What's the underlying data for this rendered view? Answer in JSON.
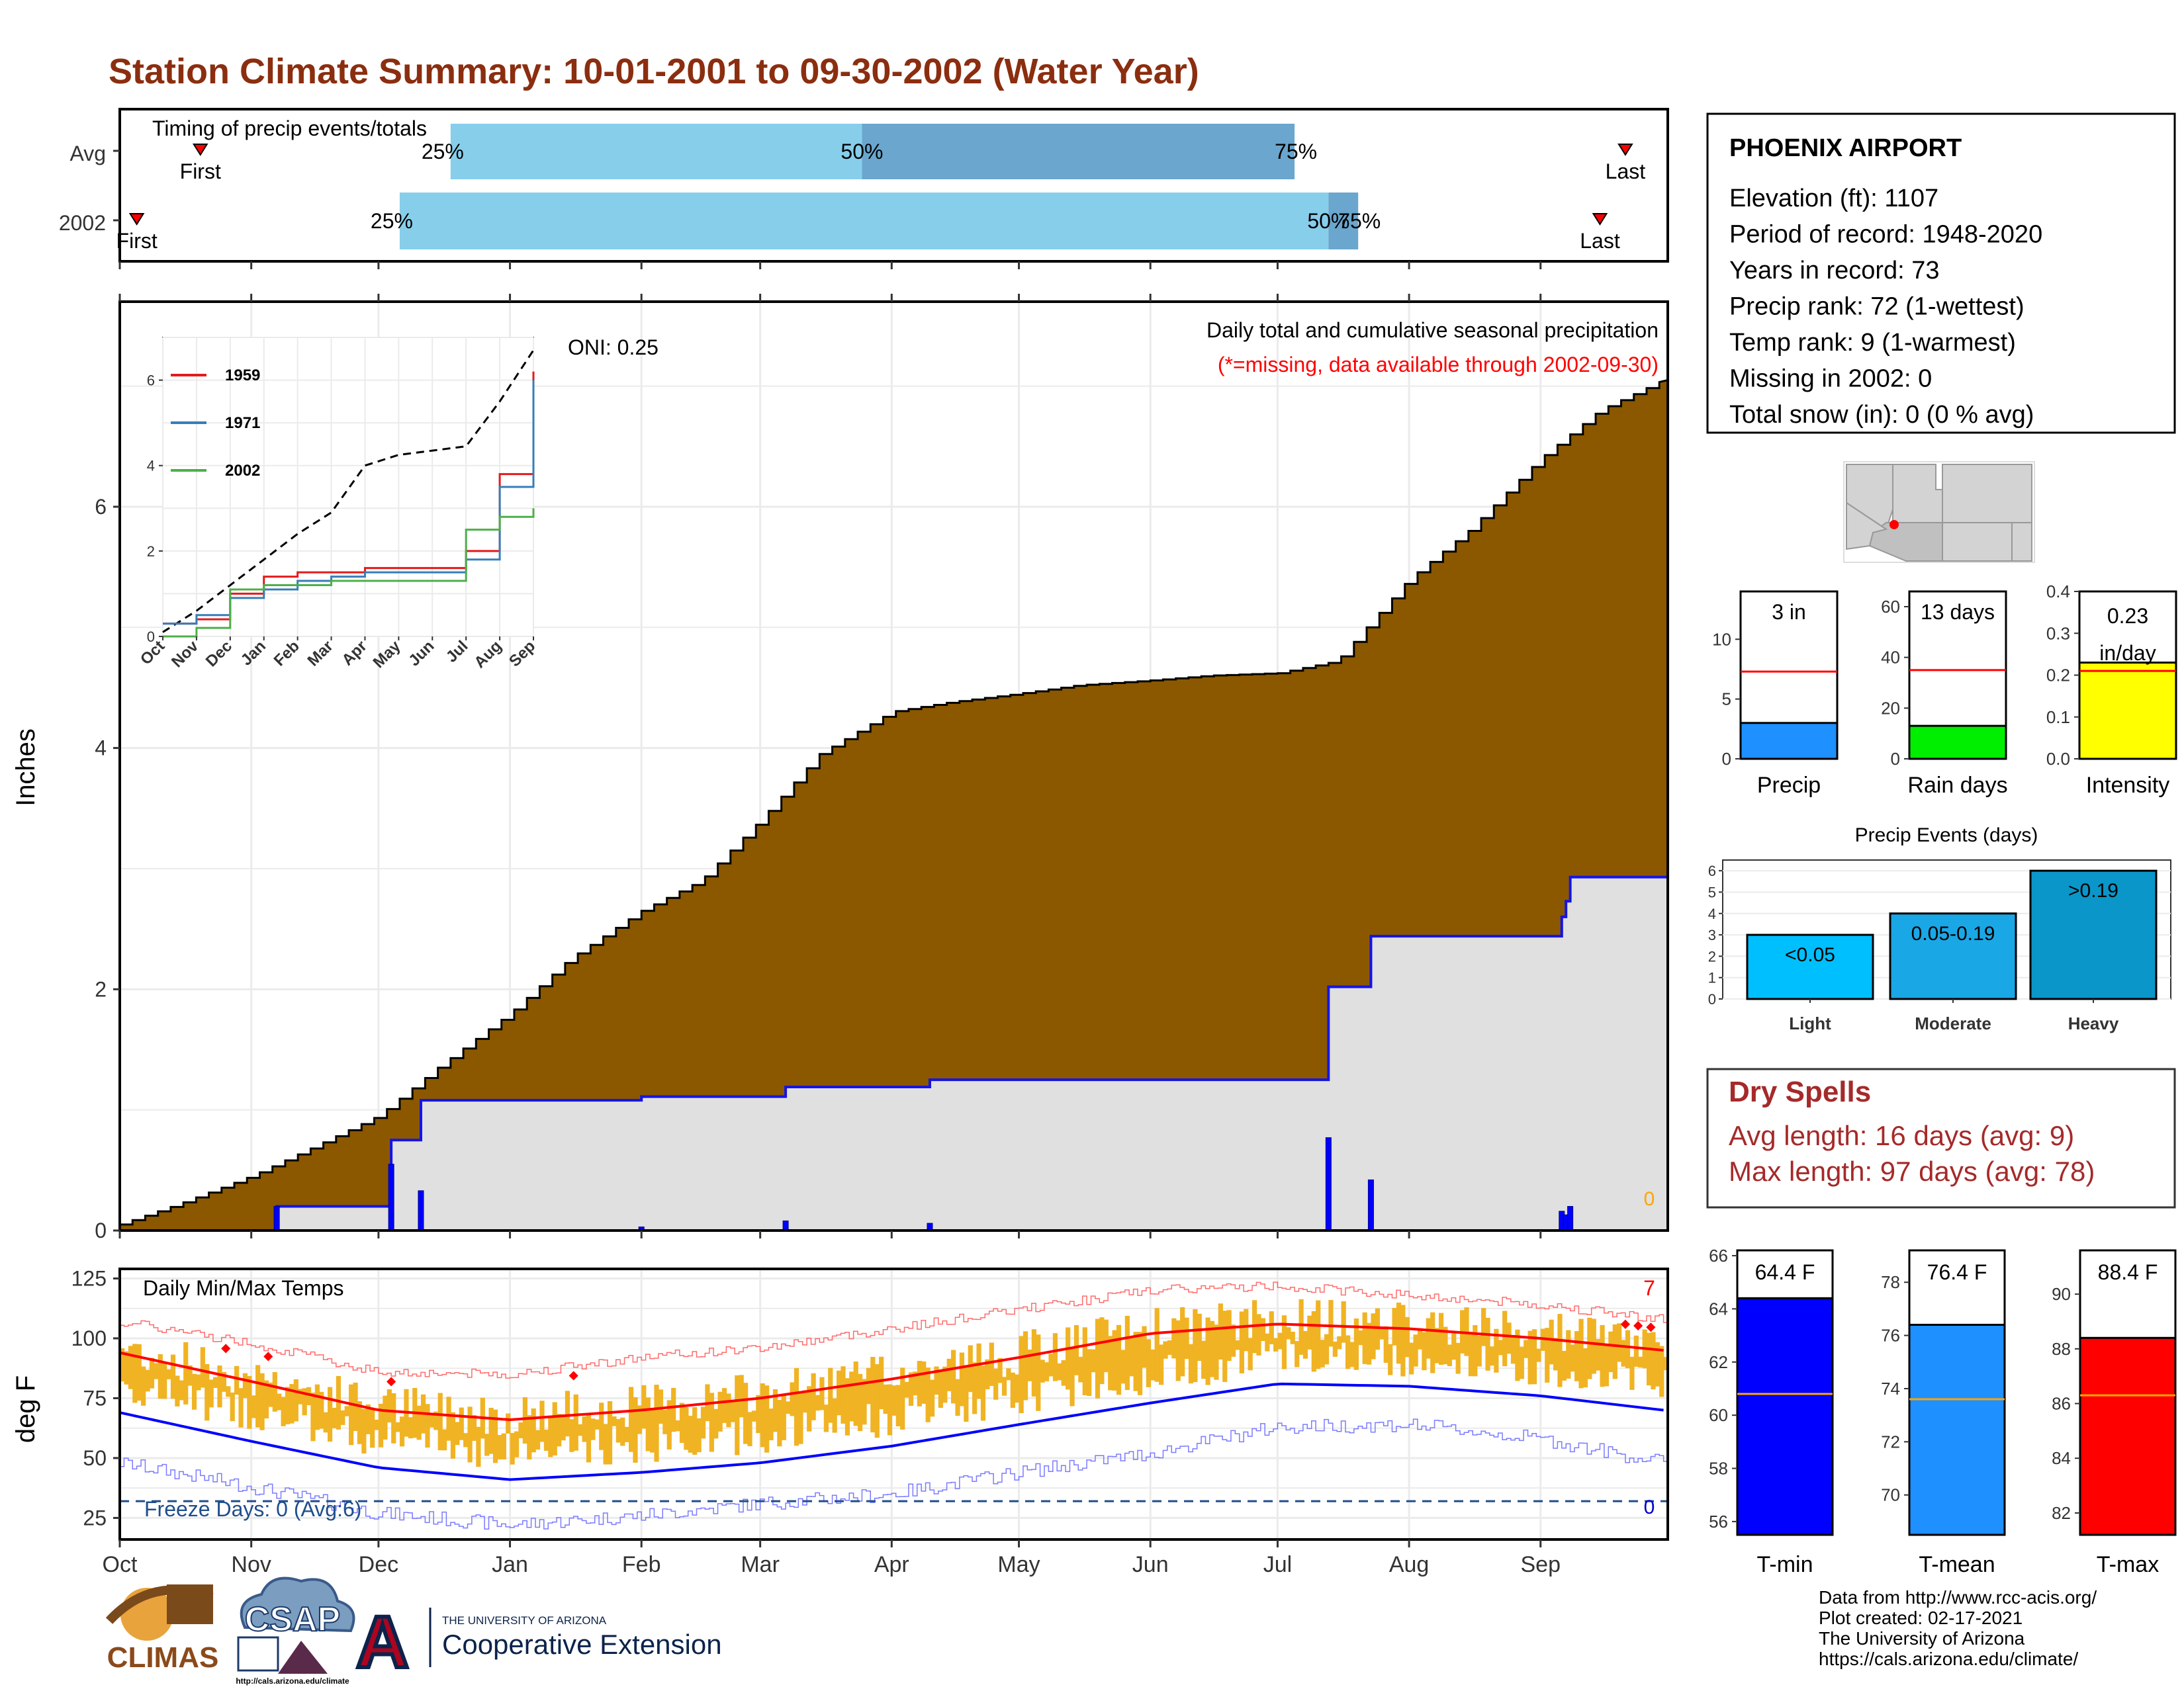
{
  "title": "Station Climate Summary: 10-01-2001 to 09-30-2002 (Water Year)",
  "colors": {
    "title": "#8b2e0f",
    "avg_fill": "#8b5800",
    "cur_fill": "#e0e0e0",
    "cur_line": "#1414e6",
    "light_blue": "#87ceeb",
    "mid_blue": "#6aa6cd",
    "temp_bar": "#f0b323",
    "dry_red": "#a52a2a",
    "record_red": "#ff0000",
    "record_blue": "#0000ff",
    "normal_line": "#ff0000",
    "yellow": "#ffff00",
    "green": "#00ee00",
    "precip_blue": "#1e90ff",
    "event_light": "#00bfff",
    "event_mod": "#1aa7e6",
    "event_heavy": "#0a96c8",
    "freeze": "#1f4e8c",
    "orange_line": "#ffa500"
  },
  "months": [
    "Oct",
    "Nov",
    "Dec",
    "Jan",
    "Feb",
    "Mar",
    "Apr",
    "May",
    "Jun",
    "Jul",
    "Aug",
    "Sep"
  ],
  "timing": {
    "title": "Timing of precip events/totals",
    "rows": [
      "Avg",
      "2002"
    ],
    "first_label": "First",
    "last_label": "Last",
    "p25": "25%",
    "p50": "50%",
    "p75": "75%"
  },
  "precip": {
    "ylabel": "Inches",
    "yticks": [
      "0",
      "2",
      "4",
      "6"
    ],
    "oni": "ONI: 0.25",
    "label1": "Daily total and cumulative seasonal precipitation",
    "label2": "(*=missing, data available through 2002-09-30)",
    "missing_count": "0"
  },
  "inset": {
    "yticks": [
      "0",
      "2",
      "4",
      "6"
    ],
    "months": [
      "Oct",
      "Nov",
      "Dec",
      "Jan",
      "Feb",
      "Mar",
      "Apr",
      "May",
      "Jun",
      "Jul",
      "Aug",
      "Sep"
    ],
    "legend": [
      "1959",
      "1971",
      "2002"
    ],
    "legend_colors": [
      "#e41a1c",
      "#377eb8",
      "#4daf4a"
    ]
  },
  "temps": {
    "title": "Daily Min/Max Temps",
    "ylabel": "deg F",
    "yticks": [
      "25",
      "50",
      "75",
      "100",
      "125"
    ],
    "freeze_label": "Freeze Days: 0 (Avg:6)",
    "record_high_count": "7",
    "record_low_count": "0"
  },
  "station": {
    "name": "PHOENIX AIRPORT",
    "lines": [
      "Elevation (ft): 1107",
      "Period of record: 1948-2020",
      "Years in record: 73",
      "Precip rank: 72 (1-wettest)",
      "Temp rank: 9 (1-warmest)",
      "Missing in 2002: 0",
      "Total snow (in): 0 (0 % avg)"
    ]
  },
  "summary_bars": [
    {
      "label": "Precip",
      "value_label": "3 in",
      "value": 3.0,
      "avg": 7.3,
      "ymax": 14,
      "ticks": [
        "0",
        "5",
        "10"
      ],
      "tick_vals": [
        0,
        5,
        10
      ],
      "color": "#1e90ff"
    },
    {
      "label": "Rain days",
      "value_label": "13 days",
      "value": 13,
      "avg": 35,
      "ymax": 66,
      "ticks": [
        "0",
        "20",
        "40",
        "60"
      ],
      "tick_vals": [
        0,
        20,
        40,
        60
      ],
      "color": "#00ee00"
    },
    {
      "label": "Intensity",
      "value_label": "0.23\nin/day",
      "value": 0.23,
      "avg": 0.21,
      "ymax": 0.4,
      "ticks": [
        "0.0",
        "0.1",
        "0.2",
        "0.3",
        "0.4"
      ],
      "tick_vals": [
        0,
        0.1,
        0.2,
        0.3,
        0.4
      ],
      "color": "#ffff00"
    }
  ],
  "events": {
    "title": "Precip Events (days)",
    "yticks": [
      "0",
      "1",
      "2",
      "3",
      "4",
      "5",
      "6"
    ],
    "bars": [
      {
        "name": "Light",
        "label": "<0.05",
        "value": 3
      },
      {
        "name": "Moderate",
        "label": "0.05-0.19",
        "value": 4
      },
      {
        "name": "Heavy",
        "label": ">0.19",
        "value": 6
      }
    ]
  },
  "dry_spells": {
    "title": "Dry Spells",
    "avg_line": "Avg length: 16 days (avg: 9)",
    "max_line": "Max length: 97 days (avg: 78)"
  },
  "temp_bars": [
    {
      "label": "T-min",
      "value_label": "64.4 F",
      "value": 64.4,
      "avg": 60.8,
      "ymin": 55.5,
      "ymax": 66.2,
      "ticks": [
        "56",
        "58",
        "60",
        "62",
        "64",
        "66"
      ],
      "tick_vals": [
        56,
        58,
        60,
        62,
        64,
        66
      ],
      "color": "#0000ff"
    },
    {
      "label": "T-mean",
      "value_label": "76.4 F",
      "value": 76.4,
      "avg": 73.6,
      "ymin": 68.5,
      "ymax": 79.2,
      "ticks": [
        "70",
        "72",
        "74",
        "76",
        "78"
      ],
      "tick_vals": [
        70,
        72,
        74,
        76,
        78
      ],
      "color": "#1e90ff"
    },
    {
      "label": "T-max",
      "value_label": "88.4 F",
      "value": 88.4,
      "avg": 86.3,
      "ymin": 81.2,
      "ymax": 91.6,
      "ticks": [
        "82",
        "84",
        "86",
        "88",
        "90"
      ],
      "tick_vals": [
        82,
        84,
        86,
        88,
        90
      ],
      "color": "#ff0000"
    }
  ],
  "footer": {
    "lines": [
      "Data from http://www.rcc-acis.org/",
      "Plot created: 02-17-2021",
      "The University of Arizona",
      "https://cals.arizona.edu/climate/"
    ],
    "climas": "CLIMAS",
    "csap": "CSAP",
    "csap_url": "http://cals.arizona.edu/climate",
    "ua_small": "THE UNIVERSITY OF ARIZONA",
    "ua_large": "Cooperative Extension"
  },
  "chart_data": [
    {
      "type": "bar",
      "title": "Timing of precip events/totals",
      "categories": [
        "Avg",
        "2002"
      ],
      "series": [
        {
          "name": "First",
          "values": [
            "2001-10-20",
            "2001-10-05"
          ]
        },
        {
          "name": "25%",
          "values": [
            "2001-12-18",
            "2001-12-06"
          ]
        },
        {
          "name": "50%",
          "values": [
            "2002-03-25",
            "2002-07-13"
          ]
        },
        {
          "name": "75%",
          "values": [
            "2002-07-05",
            "2002-07-20"
          ]
        },
        {
          "name": "Last",
          "values": [
            "2002-09-21",
            "2002-09-15"
          ]
        }
      ]
    },
    {
      "type": "area",
      "title": "Daily total and cumulative seasonal precipitation",
      "ylabel": "Inches",
      "ylim": [
        0,
        7.7
      ],
      "x": [
        "2001-10-01",
        "2001-10-15",
        "2001-11-01",
        "2001-11-15",
        "2001-12-01",
        "2001-12-15",
        "2002-01-01",
        "2002-01-15",
        "2002-02-01",
        "2002-02-15",
        "2002-03-01",
        "2002-03-15",
        "2002-04-01",
        "2002-04-15",
        "2002-05-01",
        "2002-05-15",
        "2002-06-01",
        "2002-06-15",
        "2002-07-01",
        "2002-07-15",
        "2002-08-01",
        "2002-08-15",
        "2002-09-01",
        "2002-09-15",
        "2002-09-30"
      ],
      "series": [
        {
          "name": "Avg cumulative",
          "values": [
            0.05,
            0.22,
            0.45,
            0.68,
            0.95,
            1.35,
            1.8,
            2.25,
            2.65,
            2.9,
            3.4,
            3.95,
            4.3,
            4.38,
            4.45,
            4.52,
            4.56,
            4.6,
            4.62,
            4.72,
            5.4,
            5.8,
            6.4,
            6.8,
            7.05
          ]
        },
        {
          "name": "2002 cumulative",
          "values": [
            0,
            0,
            0.22,
            0.22,
            0.22,
            1.1,
            1.12,
            1.14,
            1.16,
            1.24,
            1.25,
            1.28,
            1.3,
            1.3,
            1.3,
            1.3,
            1.3,
            1.3,
            1.3,
            2.07,
            2.49,
            2.49,
            2.49,
            3.0,
            3.0
          ]
        }
      ],
      "daily_precip": [
        {
          "x": "2001-11-07",
          "y": 0.2
        },
        {
          "x": "2001-12-04",
          "y": 0.55
        },
        {
          "x": "2001-12-11",
          "y": 0.33
        },
        {
          "x": "2002-02-01",
          "y": 0.03
        },
        {
          "x": "2002-03-07",
          "y": 0.08
        },
        {
          "x": "2002-04-10",
          "y": 0.06
        },
        {
          "x": "2002-07-13",
          "y": 0.77
        },
        {
          "x": "2002-07-23",
          "y": 0.42
        },
        {
          "x": "2002-09-06",
          "y": 0.16
        },
        {
          "x": "2002-09-07",
          "y": 0.13
        },
        {
          "x": "2002-09-08",
          "y": 0.2
        }
      ]
    },
    {
      "type": "line",
      "title": "",
      "ylim": [
        0,
        7
      ],
      "x_categories": [
        "Oct",
        "Nov",
        "Dec",
        "Jan",
        "Feb",
        "Mar",
        "Apr",
        "May",
        "Jun",
        "Jul",
        "Aug",
        "Sep"
      ],
      "series": [
        {
          "name": "",
          "values": [
            0.1,
            0.6,
            1.2,
            1.8,
            2.4,
            2.9,
            4.0,
            4.25,
            4.35,
            4.45,
            5.5,
            6.7
          ]
        },
        {
          "name": "1959",
          "values": [
            0.3,
            0.4,
            1.0,
            1.4,
            1.5,
            1.5,
            1.6,
            1.6,
            1.6,
            2.0,
            3.8,
            6.2
          ]
        },
        {
          "name": "1971",
          "values": [
            0.3,
            0.5,
            0.9,
            1.1,
            1.3,
            1.4,
            1.5,
            1.5,
            1.5,
            1.8,
            3.5,
            6.0
          ]
        },
        {
          "name": "2002",
          "values": [
            0.0,
            0.2,
            1.1,
            1.2,
            1.2,
            1.3,
            1.3,
            1.3,
            1.3,
            2.5,
            2.8,
            3.0
          ]
        }
      ]
    },
    {
      "type": "line",
      "title": "Daily Min/Max Temps",
      "ylabel": "deg F",
      "ylim": [
        16,
        129
      ],
      "x": [
        "2001-10-01",
        "2001-11-01",
        "2001-12-01",
        "2002-01-01",
        "2002-02-01",
        "2002-03-01",
        "2002-04-01",
        "2002-05-01",
        "2002-06-01",
        "2002-07-01",
        "2002-08-01",
        "2002-09-01",
        "2002-09-30"
      ],
      "series": [
        {
          "name": "Normal max",
          "values": [
            94,
            82,
            70,
            66,
            70,
            75,
            83,
            92,
            102,
            106,
            104,
            100,
            95
          ]
        },
        {
          "name": "Normal min",
          "values": [
            69,
            57,
            46,
            41,
            44,
            48,
            55,
            64,
            73,
            81,
            80,
            76,
            70
          ]
        },
        {
          "name": "Record max",
          "values": [
            107,
            98,
            86,
            85,
            92,
            96,
            104,
            112,
            120,
            122,
            118,
            114,
            108
          ]
        },
        {
          "name": "Record min",
          "values": [
            48,
            38,
            27,
            22,
            26,
            31,
            35,
            44,
            52,
            63,
            64,
            58,
            48
          ]
        }
      ],
      "freeze_line": 32
    },
    {
      "type": "bar",
      "categories": [
        "Precip",
        "Rain days",
        "Intensity"
      ],
      "values": [
        3.0,
        13,
        0.23
      ],
      "averages": [
        7.3,
        35,
        0.21
      ]
    },
    {
      "type": "bar",
      "title": "Precip Events (days)",
      "categories": [
        "Light",
        "Moderate",
        "Heavy"
      ],
      "values": [
        3,
        4,
        6
      ],
      "ylim": [
        0,
        6.5
      ]
    },
    {
      "type": "bar",
      "categories": [
        "T-min",
        "T-mean",
        "T-max"
      ],
      "values": [
        64.4,
        76.4,
        88.4
      ],
      "averages": [
        60.8,
        73.6,
        86.3
      ]
    }
  ]
}
